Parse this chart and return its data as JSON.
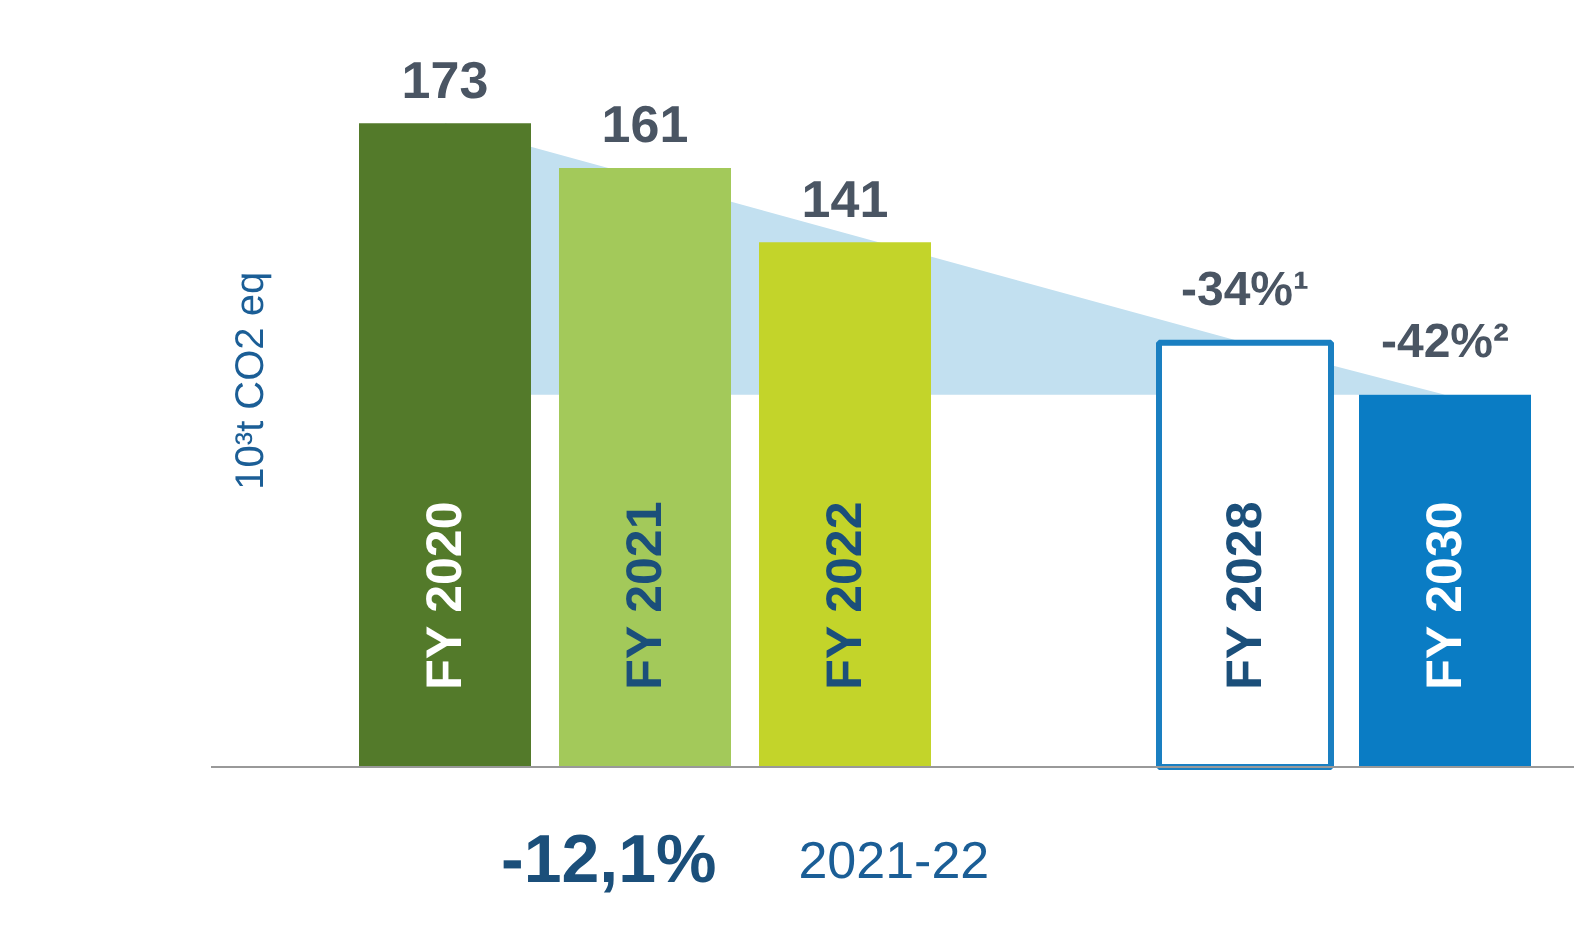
{
  "chart_data": {
    "type": "bar",
    "categories": [
      "FY 2020",
      "FY 2021",
      "FY 2022",
      null,
      "FY 2028",
      "FY 2030"
    ],
    "values": [
      173,
      161,
      141,
      null,
      114,
      100
    ],
    "colors": [
      "#537a2a",
      "#a3c95a",
      "#c3d42a",
      null,
      "#1a7fc1",
      "#0a7cc4"
    ],
    "value_labels": [
      "173",
      "161",
      "141",
      null,
      null,
      null
    ],
    "series": [
      {
        "type": "area",
        "color": "#c2e0f0",
        "x": [
          "FY 2020",
          "FY 2028",
          "FY 2030"
        ],
        "values": [
          173,
          114,
          100
        ]
      }
    ],
    "ylabel": "10³t CO2 eq",
    "annotations": [
      {
        "text": "-34%¹",
        "x": "FY 2028",
        "y": 114
      },
      {
        "text": "-42%²",
        "x": "FY 2030",
        "y": 100
      },
      "-12,1%",
      "2021-22"
    ],
    "grid": false
  }
}
